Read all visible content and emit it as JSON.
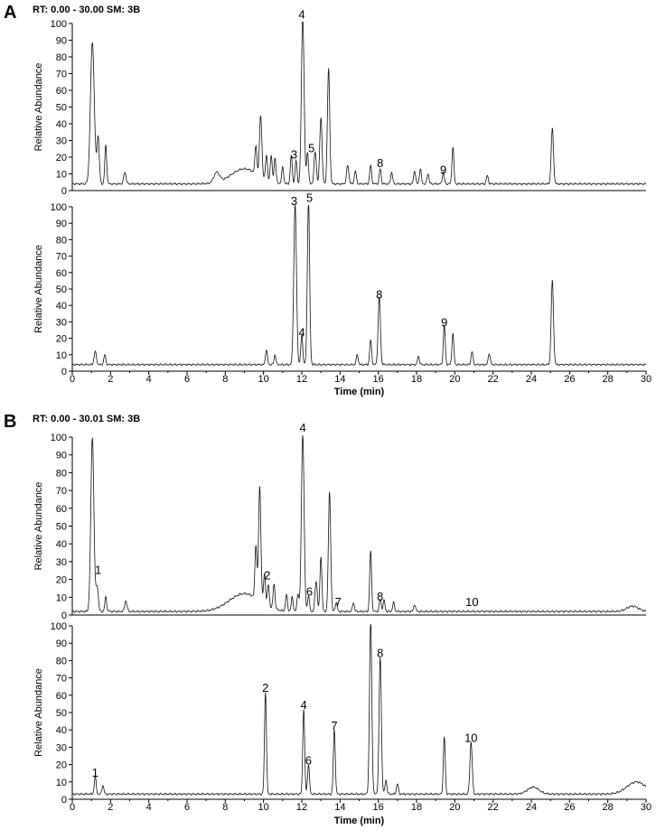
{
  "panels": [
    {
      "letter": "A",
      "header": "RT: 0.00 - 30.00   SM: 3B",
      "xlabel": "Time (min)",
      "xticks": [
        "0",
        "2",
        "4",
        "6",
        "8",
        "10",
        "12",
        "14",
        "16",
        "18",
        "20",
        "22",
        "24",
        "26",
        "28",
        "30"
      ],
      "traces": [
        {
          "ylabel": "Relative Abundance",
          "yticks": [
            "0",
            "10",
            "20",
            "30",
            "40",
            "50",
            "60",
            "70",
            "80",
            "90",
            "100"
          ],
          "baseline": 4,
          "peaks": [
            {
              "t": 1.05,
              "h": 85,
              "w": 0.1
            },
            {
              "t": 1.35,
              "h": 28,
              "w": 0.06
            },
            {
              "t": 1.75,
              "h": 23,
              "w": 0.05
            },
            {
              "t": 2.75,
              "h": 7,
              "w": 0.06
            },
            {
              "t": 7.55,
              "h": 6,
              "w": 0.15
            },
            {
              "t": 9.0,
              "h": 9,
              "w": 0.7
            },
            {
              "t": 9.6,
              "h": 17,
              "w": 0.05
            },
            {
              "t": 9.85,
              "h": 37,
              "w": 0.06
            },
            {
              "t": 10.15,
              "h": 15,
              "w": 0.05
            },
            {
              "t": 10.4,
              "h": 16,
              "w": 0.05
            },
            {
              "t": 10.6,
              "h": 15,
              "w": 0.05
            },
            {
              "t": 11.0,
              "h": 10,
              "w": 0.05
            },
            {
              "t": 11.45,
              "h": 17,
              "w": 0.05
            },
            {
              "t": 11.7,
              "h": 14,
              "w": 0.05
            },
            {
              "t": 12.05,
              "h": 100,
              "w": 0.07
            },
            {
              "t": 12.3,
              "h": 19,
              "w": 0.05
            },
            {
              "t": 12.7,
              "h": 19,
              "w": 0.06
            },
            {
              "t": 13.0,
              "h": 40,
              "w": 0.06
            },
            {
              "t": 13.4,
              "h": 69,
              "w": 0.06
            },
            {
              "t": 14.4,
              "h": 11,
              "w": 0.06
            },
            {
              "t": 14.8,
              "h": 8,
              "w": 0.05
            },
            {
              "t": 15.6,
              "h": 11,
              "w": 0.05
            },
            {
              "t": 16.1,
              "h": 9,
              "w": 0.05
            },
            {
              "t": 16.7,
              "h": 7,
              "w": 0.05
            },
            {
              "t": 17.9,
              "h": 8,
              "w": 0.05
            },
            {
              "t": 18.2,
              "h": 9,
              "w": 0.05
            },
            {
              "t": 18.6,
              "h": 6,
              "w": 0.05
            },
            {
              "t": 19.4,
              "h": 7,
              "w": 0.05
            },
            {
              "t": 19.9,
              "h": 22,
              "w": 0.05
            },
            {
              "t": 21.7,
              "h": 5,
              "w": 0.05
            },
            {
              "t": 25.1,
              "h": 33,
              "w": 0.06
            }
          ],
          "peak_labels": [
            {
              "label": "3",
              "t": 11.6,
              "y": 18
            },
            {
              "label": "4",
              "t": 12.0,
              "y": 102
            },
            {
              "label": "5",
              "t": 12.5,
              "y": 22
            },
            {
              "label": "8",
              "t": 16.1,
              "y": 13
            },
            {
              "label": "9",
              "t": 19.4,
              "y": 9
            }
          ]
        },
        {
          "ylabel": "Relative Abundance",
          "yticks": [
            "0",
            "10",
            "20",
            "30",
            "40",
            "50",
            "60",
            "70",
            "80",
            "90",
            "100"
          ],
          "baseline": 4,
          "peaks": [
            {
              "t": 1.2,
              "h": 8,
              "w": 0.06
            },
            {
              "t": 1.7,
              "h": 6,
              "w": 0.05
            },
            {
              "t": 10.15,
              "h": 9,
              "w": 0.05
            },
            {
              "t": 10.6,
              "h": 6,
              "w": 0.05
            },
            {
              "t": 11.65,
              "h": 98,
              "w": 0.07
            },
            {
              "t": 12.0,
              "h": 18,
              "w": 0.05
            },
            {
              "t": 12.35,
              "h": 100,
              "w": 0.06
            },
            {
              "t": 14.9,
              "h": 6,
              "w": 0.05
            },
            {
              "t": 15.6,
              "h": 15,
              "w": 0.05
            },
            {
              "t": 16.05,
              "h": 41,
              "w": 0.06
            },
            {
              "t": 18.1,
              "h": 5,
              "w": 0.05
            },
            {
              "t": 19.45,
              "h": 24,
              "w": 0.05
            },
            {
              "t": 19.9,
              "h": 19,
              "w": 0.05
            },
            {
              "t": 20.9,
              "h": 8,
              "w": 0.05
            },
            {
              "t": 21.8,
              "h": 7,
              "w": 0.05
            },
            {
              "t": 25.1,
              "h": 51,
              "w": 0.06
            }
          ],
          "peak_labels": [
            {
              "label": "3",
              "t": 11.6,
              "y": 100
            },
            {
              "label": "4",
              "t": 12.0,
              "y": 20
            },
            {
              "label": "5",
              "t": 12.4,
              "y": 102
            },
            {
              "label": "8",
              "t": 16.05,
              "y": 43
            },
            {
              "label": "9",
              "t": 19.45,
              "y": 26
            }
          ]
        }
      ]
    },
    {
      "letter": "B",
      "header": "RT: 0.00 - 30.01   SM: 3B",
      "xlabel": "Time (min)",
      "xticks": [
        "0",
        "2",
        "4",
        "6",
        "8",
        "10",
        "12",
        "14",
        "16",
        "18",
        "20",
        "22",
        "24",
        "26",
        "28",
        "30"
      ],
      "traces": [
        {
          "ylabel": "Relative Abundance",
          "yticks": [
            "0",
            "10",
            "20",
            "30",
            "40",
            "50",
            "60",
            "70",
            "80",
            "90",
            "100"
          ],
          "baseline": 2,
          "peaks": [
            {
              "t": 1.05,
              "h": 98,
              "w": 0.08
            },
            {
              "t": 1.3,
              "h": 14,
              "w": 0.06
            },
            {
              "t": 1.75,
              "h": 8,
              "w": 0.05
            },
            {
              "t": 2.8,
              "h": 6,
              "w": 0.06
            },
            {
              "t": 9.0,
              "h": 10,
              "w": 0.8
            },
            {
              "t": 9.6,
              "h": 30,
              "w": 0.05
            },
            {
              "t": 9.8,
              "h": 64,
              "w": 0.06
            },
            {
              "t": 10.05,
              "h": 17,
              "w": 0.05
            },
            {
              "t": 10.25,
              "h": 12,
              "w": 0.05
            },
            {
              "t": 10.55,
              "h": 14,
              "w": 0.05
            },
            {
              "t": 11.2,
              "h": 9,
              "w": 0.05
            },
            {
              "t": 11.5,
              "h": 8,
              "w": 0.05
            },
            {
              "t": 11.8,
              "h": 10,
              "w": 0.05
            },
            {
              "t": 12.05,
              "h": 100,
              "w": 0.07
            },
            {
              "t": 12.35,
              "h": 9,
              "w": 0.05
            },
            {
              "t": 12.75,
              "h": 17,
              "w": 0.06
            },
            {
              "t": 13.0,
              "h": 31,
              "w": 0.05
            },
            {
              "t": 13.45,
              "h": 67,
              "w": 0.06
            },
            {
              "t": 13.8,
              "h": 5,
              "w": 0.05
            },
            {
              "t": 14.7,
              "h": 5,
              "w": 0.05
            },
            {
              "t": 15.6,
              "h": 34,
              "w": 0.05
            },
            {
              "t": 16.1,
              "h": 7,
              "w": 0.05
            },
            {
              "t": 16.3,
              "h": 6,
              "w": 0.05
            },
            {
              "t": 16.8,
              "h": 5,
              "w": 0.05
            },
            {
              "t": 17.9,
              "h": 4,
              "w": 0.05
            },
            {
              "t": 29.3,
              "h": 3,
              "w": 0.3
            }
          ],
          "peak_labels": [
            {
              "label": "1",
              "t": 1.35,
              "y": 22
            },
            {
              "label": "2",
              "t": 10.2,
              "y": 19
            },
            {
              "label": "4",
              "t": 12.05,
              "y": 102
            },
            {
              "label": "6",
              "t": 12.4,
              "y": 10
            },
            {
              "label": "7",
              "t": 13.9,
              "y": 4
            },
            {
              "label": "8",
              "t": 16.1,
              "y": 7
            },
            {
              "label": "10",
              "t": 20.9,
              "y": 4
            }
          ]
        },
        {
          "ylabel": "Relative Abundance",
          "yticks": [
            "0",
            "10",
            "20",
            "30",
            "40",
            "50",
            "60",
            "70",
            "80",
            "90",
            "100"
          ],
          "baseline": 3,
          "peaks": [
            {
              "t": 1.2,
              "h": 10,
              "w": 0.05
            },
            {
              "t": 1.6,
              "h": 5,
              "w": 0.05
            },
            {
              "t": 10.1,
              "h": 59,
              "w": 0.05
            },
            {
              "t": 12.1,
              "h": 49,
              "w": 0.05
            },
            {
              "t": 12.35,
              "h": 17,
              "w": 0.05
            },
            {
              "t": 13.7,
              "h": 37,
              "w": 0.05
            },
            {
              "t": 15.6,
              "h": 100,
              "w": 0.06
            },
            {
              "t": 16.1,
              "h": 79,
              "w": 0.06
            },
            {
              "t": 16.4,
              "h": 8,
              "w": 0.05
            },
            {
              "t": 17.0,
              "h": 6,
              "w": 0.05
            },
            {
              "t": 19.45,
              "h": 33,
              "w": 0.05
            },
            {
              "t": 20.85,
              "h": 30,
              "w": 0.06
            },
            {
              "t": 24.1,
              "h": 4,
              "w": 0.3
            },
            {
              "t": 29.5,
              "h": 7,
              "w": 0.5
            }
          ],
          "peak_labels": [
            {
              "label": "1",
              "t": 1.2,
              "y": 12
            },
            {
              "label": "2",
              "t": 10.1,
              "y": 61
            },
            {
              "label": "4",
              "t": 12.1,
              "y": 51
            },
            {
              "label": "6",
              "t": 12.35,
              "y": 19
            },
            {
              "label": "7",
              "t": 13.7,
              "y": 39
            },
            {
              "label": "8",
              "t": 16.1,
              "y": 81
            },
            {
              "label": "10",
              "t": 20.85,
              "y": 32
            }
          ]
        }
      ]
    }
  ],
  "chart_data": [
    {
      "type": "line",
      "panel": "A (upper)",
      "xlabel": "Time (min)",
      "ylabel": "Relative Abundance",
      "xlim": [
        0,
        30
      ],
      "ylim": [
        0,
        100
      ],
      "peak_annotations": [
        {
          "label": "3",
          "x": 11.6
        },
        {
          "label": "4",
          "x": 12.05,
          "y": 100
        },
        {
          "label": "5",
          "x": 12.5
        },
        {
          "label": "8",
          "x": 16.1
        },
        {
          "label": "9",
          "x": 19.4
        }
      ],
      "major_peaks": [
        {
          "x": 1.05,
          "y": 85
        },
        {
          "x": 9.85,
          "y": 37
        },
        {
          "x": 12.05,
          "y": 100
        },
        {
          "x": 13.0,
          "y": 40
        },
        {
          "x": 13.4,
          "y": 69
        },
        {
          "x": 19.9,
          "y": 22
        },
        {
          "x": 25.1,
          "y": 33
        }
      ]
    },
    {
      "type": "line",
      "panel": "A (lower)",
      "xlabel": "Time (min)",
      "ylabel": "Relative Abundance",
      "xlim": [
        0,
        30
      ],
      "ylim": [
        0,
        100
      ],
      "peak_annotations": [
        {
          "label": "3",
          "x": 11.65,
          "y": 98
        },
        {
          "label": "4",
          "x": 12.0,
          "y": 18
        },
        {
          "label": "5",
          "x": 12.35,
          "y": 100
        },
        {
          "label": "8",
          "x": 16.05,
          "y": 41
        },
        {
          "label": "9",
          "x": 19.45,
          "y": 24
        }
      ],
      "major_peaks": [
        {
          "x": 25.1,
          "y": 51
        },
        {
          "x": 19.9,
          "y": 19
        },
        {
          "x": 15.6,
          "y": 15
        }
      ]
    },
    {
      "type": "line",
      "panel": "B (upper)",
      "xlabel": "Time (min)",
      "ylabel": "Relative Abundance",
      "xlim": [
        0,
        30
      ],
      "ylim": [
        0,
        100
      ],
      "peak_annotations": [
        {
          "label": "1",
          "x": 1.3
        },
        {
          "label": "2",
          "x": 10.05
        },
        {
          "label": "4",
          "x": 12.05,
          "y": 100
        },
        {
          "label": "6",
          "x": 12.35
        },
        {
          "label": "7",
          "x": 13.8
        },
        {
          "label": "8",
          "x": 16.1
        },
        {
          "label": "10",
          "x": 20.9
        }
      ],
      "major_peaks": [
        {
          "x": 1.05,
          "y": 98
        },
        {
          "x": 9.8,
          "y": 64
        },
        {
          "x": 13.45,
          "y": 67
        },
        {
          "x": 15.6,
          "y": 34
        },
        {
          "x": 13.0,
          "y": 31
        }
      ]
    },
    {
      "type": "line",
      "panel": "B (lower)",
      "xlabel": "Time (min)",
      "ylabel": "Relative Abundance",
      "xlim": [
        0,
        30
      ],
      "ylim": [
        0,
        100
      ],
      "peak_annotations": [
        {
          "label": "1",
          "x": 1.2,
          "y": 10
        },
        {
          "label": "2",
          "x": 10.1,
          "y": 59
        },
        {
          "label": "4",
          "x": 12.1,
          "y": 49
        },
        {
          "label": "6",
          "x": 12.35,
          "y": 17
        },
        {
          "label": "7",
          "x": 13.7,
          "y": 37
        },
        {
          "label": "8",
          "x": 16.1,
          "y": 79
        },
        {
          "label": "10",
          "x": 20.85,
          "y": 30
        }
      ],
      "major_peaks": [
        {
          "x": 15.6,
          "y": 100
        },
        {
          "x": 19.45,
          "y": 33
        }
      ]
    }
  ]
}
